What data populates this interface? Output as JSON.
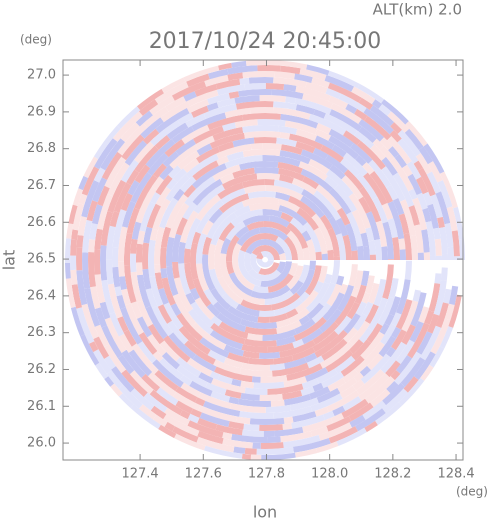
{
  "chart_data": {
    "type": "radar",
    "title": "2017/10/24 20:45:00",
    "subtitle": "ALT(km) 2.0",
    "x_label": "lon",
    "y_label": "lat",
    "x_unit": "(deg)",
    "y_unit": "(deg)",
    "xlim": [
      127.156,
      128.422
    ],
    "ylim": [
      25.954,
      27.041
    ],
    "xticks": [
      127.4,
      127.6,
      127.8,
      {
        "value": 128.0,
        "label": "128.0"
      },
      128.2,
      128.4
    ],
    "yticks": [
      {
        "value": 26.0,
        "label": "26.0"
      },
      26.1,
      26.2,
      26.3,
      26.4,
      26.5,
      26.6,
      26.7,
      26.8,
      26.9,
      {
        "value": 27.0,
        "label": "27.0"
      }
    ],
    "colors": [
      "#f3b4b4",
      "#c3c6f2",
      "#fbe4e4",
      "#e2e4fa"
    ]
  }
}
